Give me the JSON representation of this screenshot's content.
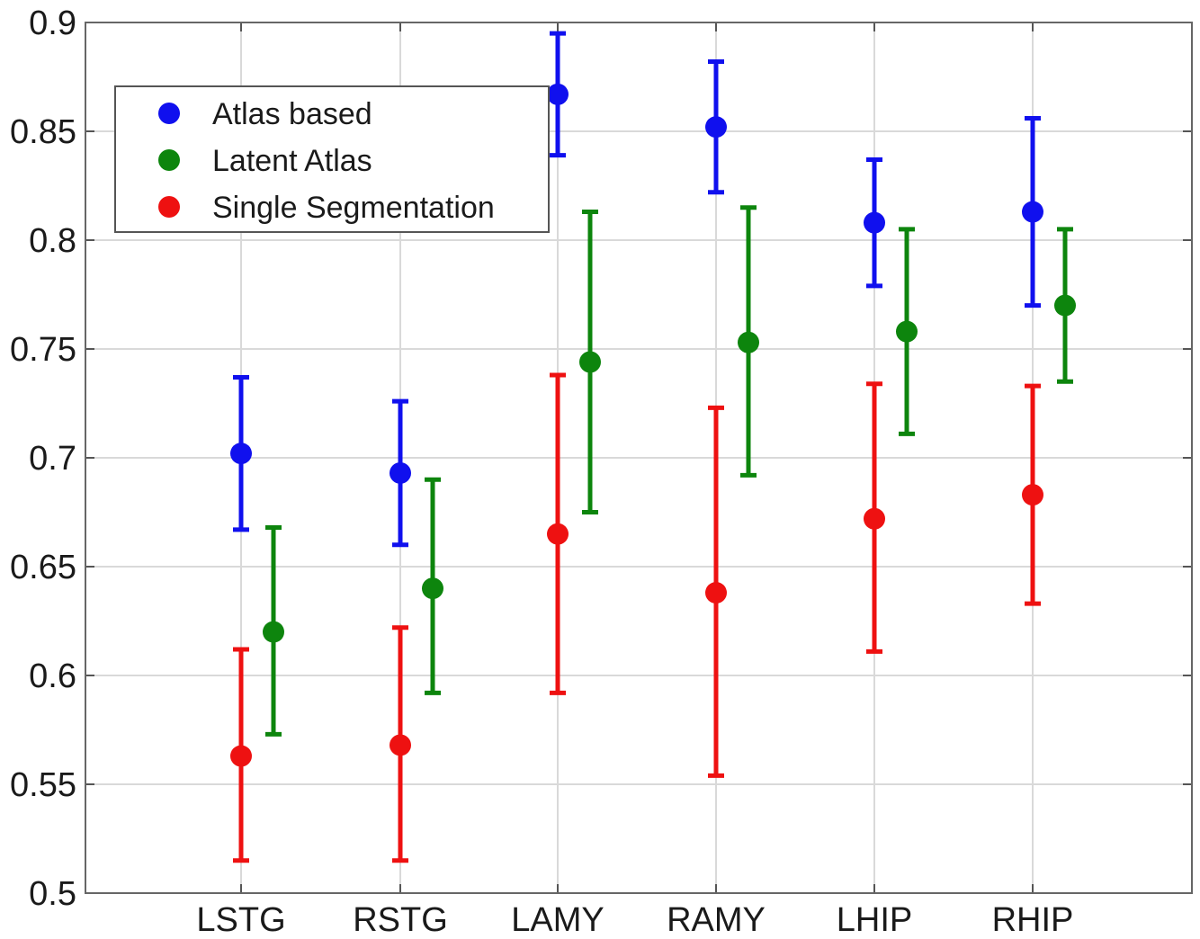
{
  "chart_data": {
    "type": "scatter",
    "title": "",
    "xlabel": "",
    "ylabel": "",
    "categories": [
      "LSTG",
      "RSTG",
      "LAMY",
      "RAMY",
      "LHIP",
      "RHIP"
    ],
    "ylim": [
      0.5,
      0.9
    ],
    "yticks": [
      0.5,
      0.55,
      0.6,
      0.65,
      0.7,
      0.75,
      0.8,
      0.85,
      0.9
    ],
    "ytick_labels": [
      "0.5",
      "0.55",
      "0.6",
      "0.65",
      "0.7",
      "0.75",
      "0.8",
      "0.85",
      "0.9"
    ],
    "grid": true,
    "legend_position": "top-left",
    "series": [
      {
        "name": "Atlas based",
        "color": "#1010ee",
        "values": [
          0.702,
          0.693,
          0.867,
          0.852,
          0.808,
          0.813
        ],
        "lower": [
          0.667,
          0.66,
          0.839,
          0.822,
          0.779,
          0.77
        ],
        "upper": [
          0.737,
          0.726,
          0.895,
          0.882,
          0.837,
          0.856
        ]
      },
      {
        "name": "Latent Atlas",
        "color": "#0d850d",
        "values": [
          0.62,
          0.64,
          0.744,
          0.753,
          0.758,
          0.77
        ],
        "lower": [
          0.573,
          0.592,
          0.675,
          0.692,
          0.711,
          0.735
        ],
        "upper": [
          0.668,
          0.69,
          0.813,
          0.815,
          0.805,
          0.805
        ]
      },
      {
        "name": "Single Segmentation",
        "color": "#ee1111",
        "values": [
          0.563,
          0.568,
          0.665,
          0.638,
          0.672,
          0.683
        ],
        "lower": [
          0.515,
          0.515,
          0.592,
          0.554,
          0.611,
          0.633
        ],
        "upper": [
          0.612,
          0.622,
          0.738,
          0.723,
          0.734,
          0.733
        ]
      }
    ]
  }
}
